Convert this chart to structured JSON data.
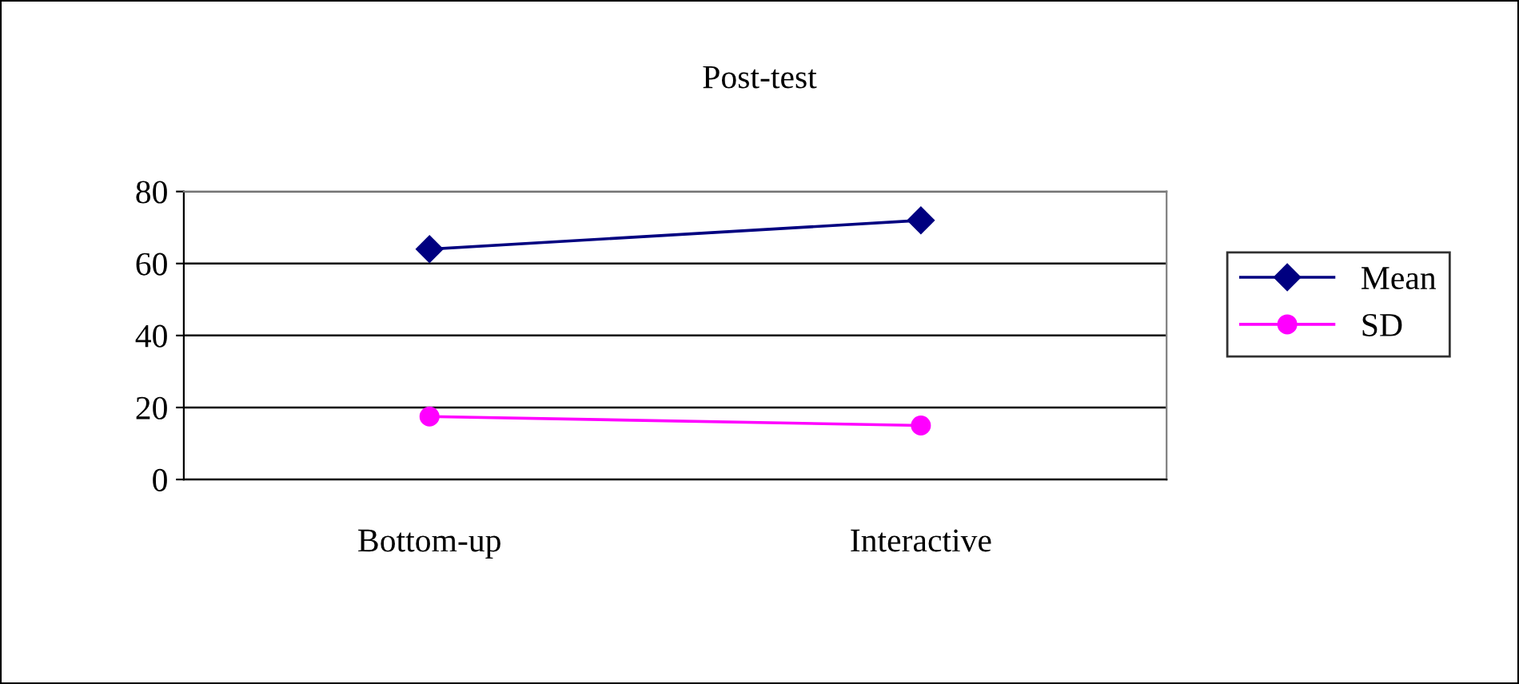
{
  "chart_data": {
    "type": "line",
    "title": "Post-test",
    "categories": [
      "Bottom-up",
      "Interactive"
    ],
    "series": [
      {
        "name": "Mean",
        "color": "#000080",
        "values": [
          64,
          72
        ],
        "marker": "diamond"
      },
      {
        "name": "SD",
        "color": "#ff00ff",
        "values": [
          17.5,
          15
        ],
        "marker": "circle"
      }
    ],
    "ylim": [
      0,
      80
    ],
    "yticks": [
      0,
      20,
      40,
      60,
      80
    ],
    "grid": "y",
    "legend": "right",
    "line_style": "solid"
  }
}
